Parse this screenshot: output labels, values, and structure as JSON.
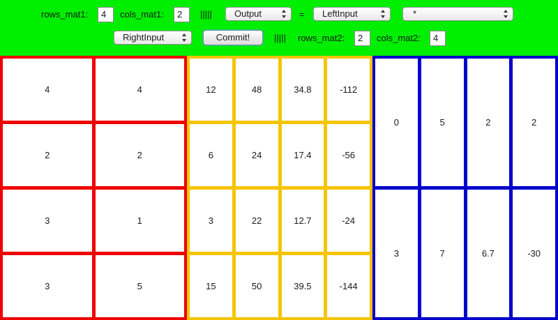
{
  "toolbar": {
    "rows_mat1_label": "rows_mat1:",
    "rows_mat1_value": "4",
    "cols_mat1_label": "cols_mat1:",
    "cols_mat1_value": "2",
    "separator": "|||||",
    "target_select": "Output",
    "equals": "=",
    "left_operand_select": "LeftInput",
    "operator_select": "*",
    "right_operand_select": "RightInput",
    "commit_label": "Commit!",
    "rows_mat2_label": "rows_mat2:",
    "rows_mat2_value": "2",
    "cols_mat2_label": "cols_mat2:",
    "cols_mat2_value": "4"
  },
  "colors": {
    "toolbar": "#00ee00",
    "left_matrix": "#ee0000",
    "output_matrix": "#f5c400",
    "right_matrix": "#0000cc"
  },
  "matrices": {
    "left": [
      [
        "4",
        "4"
      ],
      [
        "2",
        "2"
      ],
      [
        "3",
        "1"
      ],
      [
        "3",
        "5"
      ]
    ],
    "output": [
      [
        "12",
        "48",
        "34.8",
        "-112"
      ],
      [
        "6",
        "24",
        "17.4",
        "-56"
      ],
      [
        "3",
        "22",
        "12.7",
        "-24"
      ],
      [
        "15",
        "50",
        "39.5",
        "-144"
      ]
    ],
    "right": [
      [
        "0",
        "5",
        "2",
        "2"
      ],
      [
        "3",
        "7",
        "6.7",
        "-30"
      ]
    ]
  }
}
